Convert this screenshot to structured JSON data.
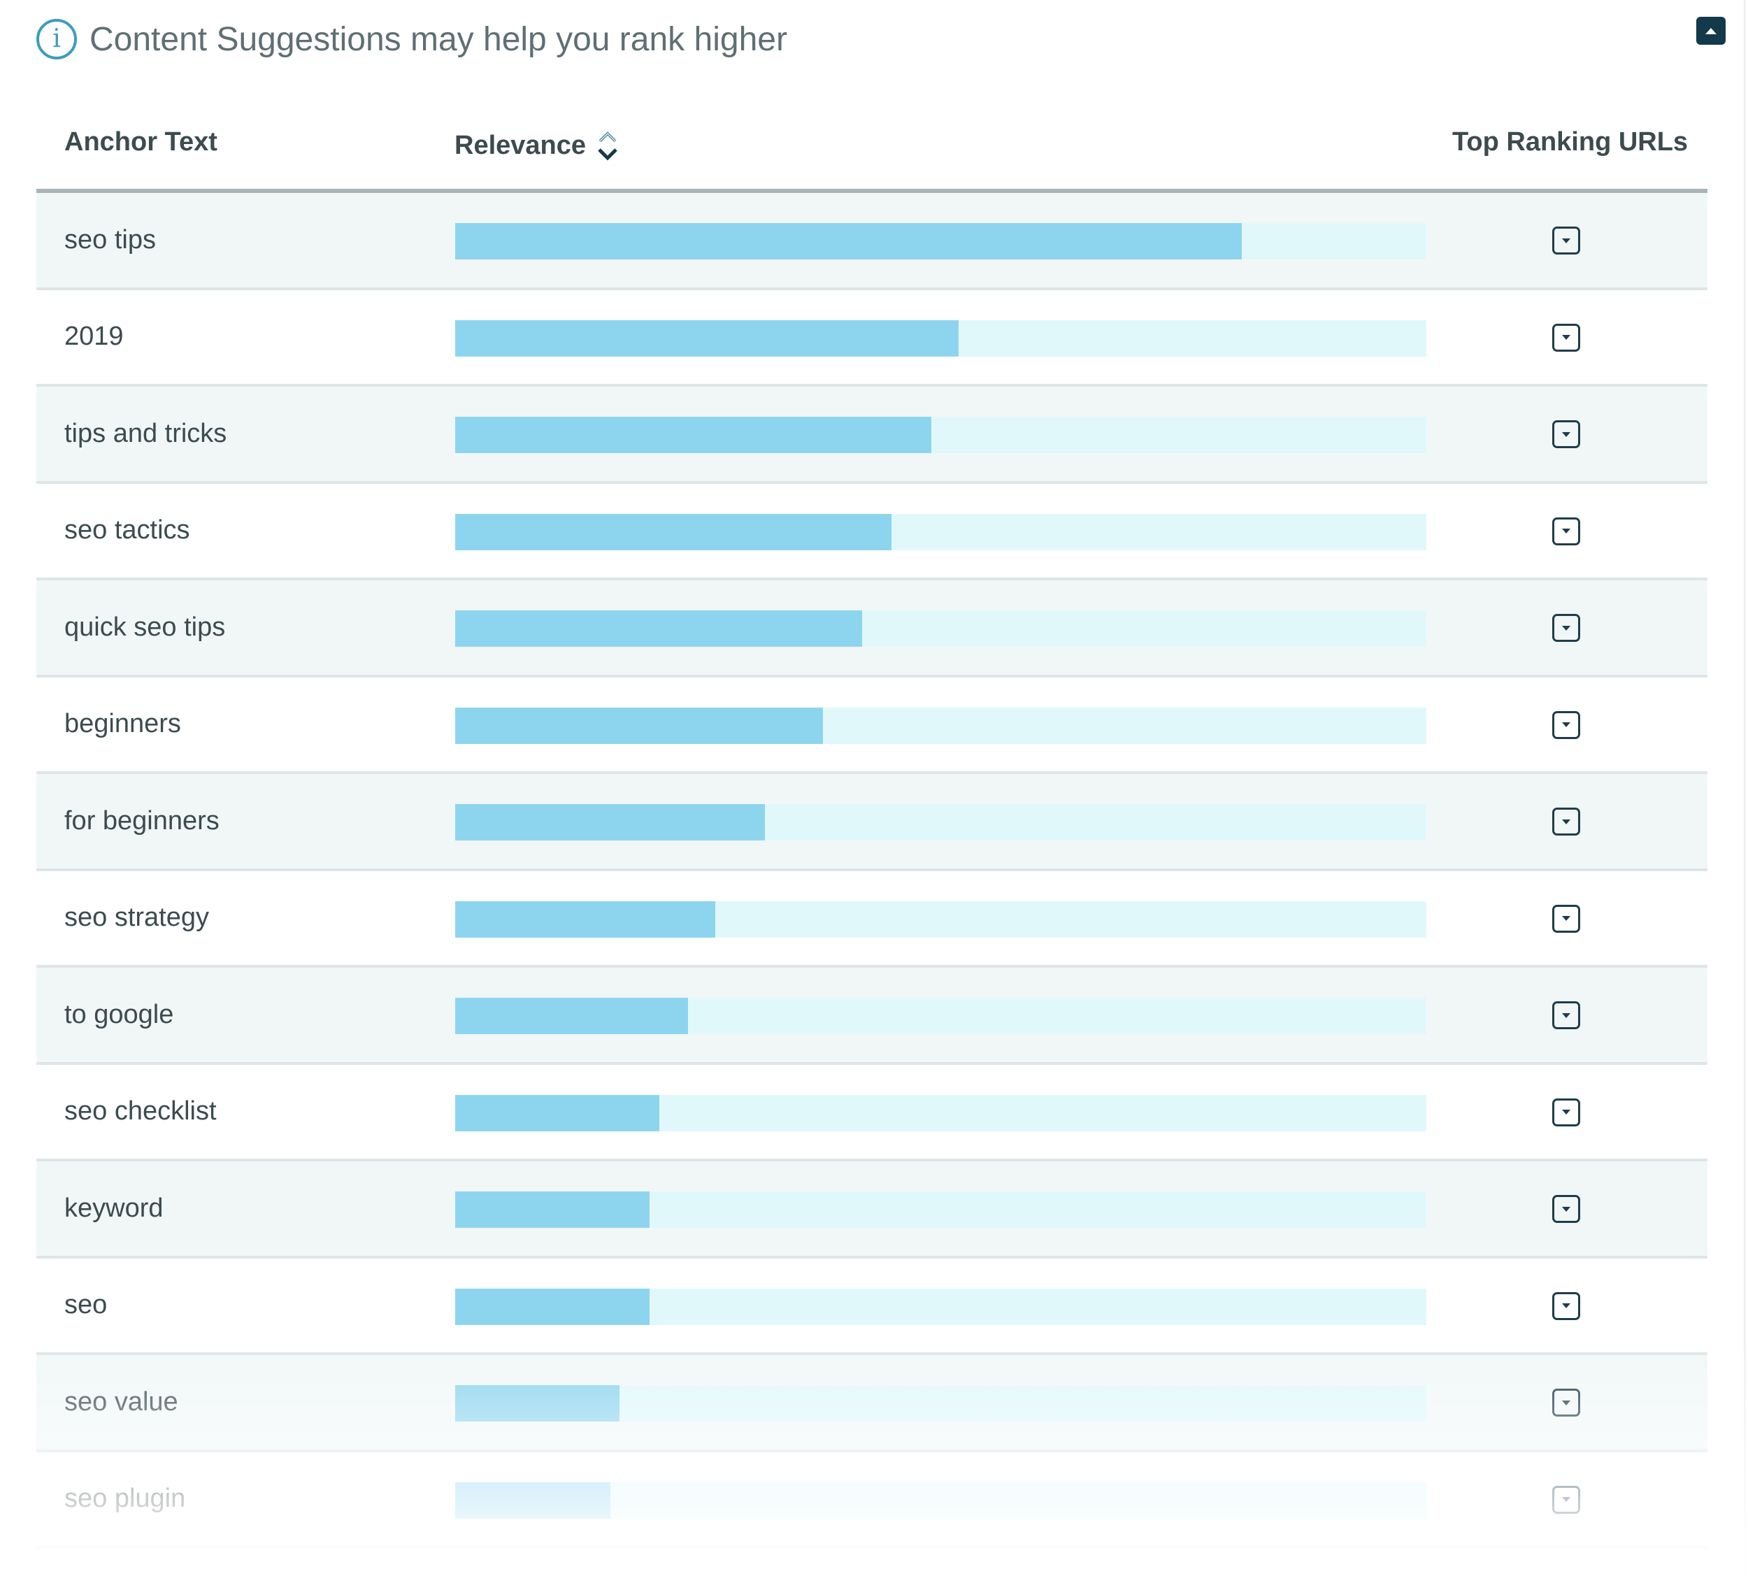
{
  "header": {
    "info_icon_glyph": "i",
    "title": "Content Suggestions may help you rank higher",
    "collapse_icon": "caret-up-icon"
  },
  "table": {
    "columns": {
      "anchor_text": "Anchor Text",
      "relevance": "Relevance",
      "top_ranking_urls": "Top Ranking URLs"
    },
    "sort_icon": "sort-updown-icon",
    "expand_icon": "caret-down-icon",
    "rows": [
      {
        "anchor": "seo tips",
        "relevance": 0.81
      },
      {
        "anchor": "2019",
        "relevance": 0.518
      },
      {
        "anchor": "tips and tricks",
        "relevance": 0.49
      },
      {
        "anchor": "seo tactics",
        "relevance": 0.449
      },
      {
        "anchor": "quick seo tips",
        "relevance": 0.419
      },
      {
        "anchor": "beginners",
        "relevance": 0.379
      },
      {
        "anchor": "for beginners",
        "relevance": 0.319
      },
      {
        "anchor": "seo strategy",
        "relevance": 0.268
      },
      {
        "anchor": "to google",
        "relevance": 0.24
      },
      {
        "anchor": "seo checklist",
        "relevance": 0.21
      },
      {
        "anchor": "keyword",
        "relevance": 0.2
      },
      {
        "anchor": "seo",
        "relevance": 0.2
      },
      {
        "anchor": "seo value",
        "relevance": 0.169
      },
      {
        "anchor": "seo plugin",
        "relevance": 0.16
      }
    ]
  },
  "colors": {
    "accent": "#3a9dc0",
    "bar_fill": "#8dd5ef",
    "bar_track": "#e1f8fb",
    "row_alt_bg": "#f1f7f7",
    "dark": "#123a4a"
  }
}
